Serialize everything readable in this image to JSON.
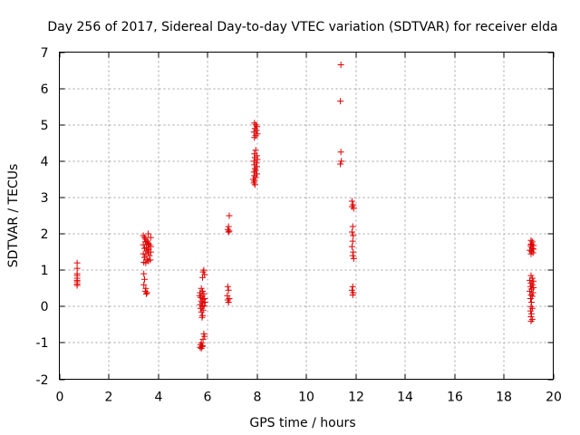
{
  "chart_data": {
    "type": "scatter",
    "title": "Day 256 of 2017, Sidereal Day-to-day VTEC variation (SDTVAR) for receiver elda",
    "xlabel": "GPS time / hours",
    "ylabel": "SDTVAR / TECUs",
    "xlim": [
      0,
      20
    ],
    "ylim": [
      -2,
      7
    ],
    "xticks": [
      0,
      2,
      4,
      6,
      8,
      10,
      12,
      14,
      16,
      18,
      20
    ],
    "yticks": [
      -2,
      -1,
      0,
      1,
      2,
      3,
      4,
      5,
      6,
      7
    ],
    "grid": true,
    "marker": "plus",
    "color": "#e00000",
    "series": [
      {
        "name": "SDTVAR",
        "points": [
          [
            0.72,
            1.2
          ],
          [
            0.72,
            1.05
          ],
          [
            0.72,
            0.9
          ],
          [
            0.72,
            0.85
          ],
          [
            0.72,
            0.78
          ],
          [
            0.72,
            0.72
          ],
          [
            0.72,
            0.68
          ],
          [
            0.72,
            0.62
          ],
          [
            0.72,
            0.58
          ],
          [
            3.4,
            1.95
          ],
          [
            3.45,
            1.9
          ],
          [
            3.5,
            1.85
          ],
          [
            3.55,
            1.8
          ],
          [
            3.6,
            1.75
          ],
          [
            3.65,
            1.7
          ],
          [
            3.7,
            1.65
          ],
          [
            3.45,
            1.6
          ],
          [
            3.55,
            1.55
          ],
          [
            3.6,
            1.5
          ],
          [
            3.5,
            1.45
          ],
          [
            3.65,
            1.4
          ],
          [
            3.45,
            1.35
          ],
          [
            3.55,
            1.3
          ],
          [
            3.6,
            1.25
          ],
          [
            3.5,
            1.2
          ],
          [
            3.7,
            1.9
          ],
          [
            3.4,
            1.7
          ],
          [
            3.7,
            1.5
          ],
          [
            3.4,
            1.45
          ],
          [
            3.6,
            2.0
          ],
          [
            3.52,
            1.62
          ],
          [
            3.58,
            1.72
          ],
          [
            3.48,
            1.78
          ],
          [
            3.62,
            1.58
          ],
          [
            3.68,
            1.28
          ],
          [
            3.42,
            1.22
          ],
          [
            3.42,
            0.9
          ],
          [
            3.45,
            0.75
          ],
          [
            3.42,
            0.6
          ],
          [
            3.5,
            0.5
          ],
          [
            3.48,
            0.42
          ],
          [
            3.55,
            0.38
          ],
          [
            3.52,
            0.35
          ],
          [
            5.75,
            0.5
          ],
          [
            5.8,
            0.42
          ],
          [
            5.7,
            0.38
          ],
          [
            5.78,
            0.3
          ],
          [
            5.72,
            0.25
          ],
          [
            5.82,
            0.2
          ],
          [
            5.75,
            0.15
          ],
          [
            5.8,
            0.1
          ],
          [
            5.7,
            0.05
          ],
          [
            5.78,
            0.0
          ],
          [
            5.72,
            -0.05
          ],
          [
            5.82,
            -0.1
          ],
          [
            5.75,
            -0.15
          ],
          [
            5.8,
            -0.25
          ],
          [
            5.78,
            -0.3
          ],
          [
            5.85,
            0.35
          ],
          [
            5.88,
            0.22
          ],
          [
            5.9,
            0.12
          ],
          [
            5.68,
            0.3
          ],
          [
            5.86,
            0.02
          ],
          [
            5.85,
            1.0
          ],
          [
            5.82,
            0.95
          ],
          [
            5.88,
            0.88
          ],
          [
            5.8,
            0.8
          ],
          [
            5.85,
            -0.75
          ],
          [
            5.88,
            -0.82
          ],
          [
            5.82,
            -0.9
          ],
          [
            5.75,
            -1.0
          ],
          [
            5.72,
            -1.05
          ],
          [
            5.78,
            -1.1
          ],
          [
            5.75,
            -1.15
          ],
          [
            5.8,
            -1.08
          ],
          [
            5.7,
            -1.12
          ],
          [
            6.88,
            2.5
          ],
          [
            6.85,
            2.2
          ],
          [
            6.82,
            2.12
          ],
          [
            6.88,
            2.08
          ],
          [
            6.85,
            2.05
          ],
          [
            6.82,
            0.55
          ],
          [
            6.85,
            0.45
          ],
          [
            6.8,
            0.3
          ],
          [
            6.88,
            0.22
          ],
          [
            6.82,
            0.18
          ],
          [
            6.85,
            0.12
          ],
          [
            7.9,
            5.05
          ],
          [
            7.95,
            5.0
          ],
          [
            8.0,
            4.95
          ],
          [
            7.92,
            4.9
          ],
          [
            7.98,
            4.85
          ],
          [
            7.88,
            4.8
          ],
          [
            8.02,
            4.75
          ],
          [
            7.95,
            4.7
          ],
          [
            7.9,
            4.65
          ],
          [
            7.95,
            4.3
          ],
          [
            7.9,
            4.2
          ],
          [
            8.0,
            4.15
          ],
          [
            7.92,
            4.1
          ],
          [
            8.02,
            4.05
          ],
          [
            7.88,
            4.0
          ],
          [
            7.98,
            3.95
          ],
          [
            7.9,
            3.9
          ],
          [
            8.0,
            3.85
          ],
          [
            7.92,
            3.8
          ],
          [
            7.95,
            3.75
          ],
          [
            7.88,
            3.7
          ],
          [
            8.0,
            3.65
          ],
          [
            7.9,
            3.6
          ],
          [
            7.95,
            3.55
          ],
          [
            7.85,
            3.5
          ],
          [
            7.9,
            3.45
          ],
          [
            7.88,
            3.4
          ],
          [
            7.92,
            3.35
          ],
          [
            11.4,
            6.65
          ],
          [
            11.38,
            5.65
          ],
          [
            11.4,
            4.25
          ],
          [
            11.42,
            4.0
          ],
          [
            11.38,
            3.92
          ],
          [
            11.85,
            2.9
          ],
          [
            11.9,
            2.8
          ],
          [
            11.85,
            2.75
          ],
          [
            11.92,
            2.7
          ],
          [
            11.88,
            2.2
          ],
          [
            11.85,
            2.05
          ],
          [
            11.9,
            1.95
          ],
          [
            11.88,
            1.8
          ],
          [
            11.85,
            1.65
          ],
          [
            11.9,
            1.5
          ],
          [
            11.88,
            1.4
          ],
          [
            11.92,
            1.32
          ],
          [
            11.88,
            0.55
          ],
          [
            11.85,
            0.45
          ],
          [
            11.9,
            0.38
          ],
          [
            11.88,
            0.32
          ],
          [
            19.1,
            1.82
          ],
          [
            19.15,
            1.78
          ],
          [
            19.12,
            1.72
          ],
          [
            19.08,
            1.7
          ],
          [
            19.2,
            1.68
          ],
          [
            19.1,
            1.65
          ],
          [
            19.15,
            1.6
          ],
          [
            19.2,
            1.58
          ],
          [
            19.05,
            1.55
          ],
          [
            19.12,
            1.52
          ],
          [
            19.18,
            1.48
          ],
          [
            19.1,
            1.45
          ],
          [
            19.1,
            0.85
          ],
          [
            19.15,
            0.78
          ],
          [
            19.05,
            0.72
          ],
          [
            19.2,
            0.7
          ],
          [
            19.1,
            0.65
          ],
          [
            19.15,
            0.6
          ],
          [
            19.08,
            0.55
          ],
          [
            19.2,
            0.52
          ],
          [
            19.12,
            0.48
          ],
          [
            19.05,
            0.42
          ],
          [
            19.18,
            0.38
          ],
          [
            19.1,
            0.32
          ],
          [
            19.15,
            0.28
          ],
          [
            19.08,
            0.22
          ],
          [
            19.12,
            0.12
          ],
          [
            19.1,
            0.0
          ],
          [
            19.15,
            -0.05
          ],
          [
            19.08,
            -0.12
          ],
          [
            19.12,
            -0.2
          ],
          [
            19.1,
            -0.28
          ],
          [
            19.15,
            -0.35
          ],
          [
            19.1,
            -0.4
          ]
        ]
      }
    ]
  }
}
